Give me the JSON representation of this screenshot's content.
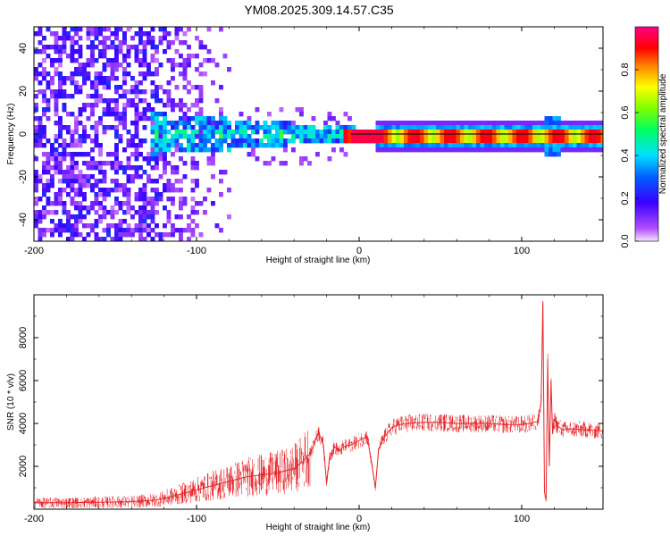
{
  "title": "YM08.2025.309.14.57.C35",
  "colors": {
    "snr_line": "#e8262a",
    "axis": "#000000",
    "background": "#ffffff",
    "colorbar_stops": [
      "#f5e6ff",
      "#8b00ff",
      "#0000ff",
      "#00ffff",
      "#00ff00",
      "#ffff00",
      "#ff8000",
      "#ff0000",
      "#ff0088"
    ]
  },
  "chart_data": [
    {
      "type": "heatmap",
      "name": "spectrogram",
      "title": "YM08.2025.309.14.57.C35",
      "xlabel": "Height of straight line (km)",
      "ylabel": "Frequency (Hz)",
      "xlim": [
        -200,
        150
      ],
      "ylim": [
        -50,
        50
      ],
      "xticks": [
        -200,
        -100,
        0,
        100
      ],
      "yticks": [
        -40,
        -20,
        0,
        20,
        40
      ],
      "xtick_labels": [
        "-200",
        "-100",
        "0",
        "100"
      ],
      "ytick_labels": [
        "-40",
        "-20",
        "0",
        "20",
        "40"
      ],
      "colorbar": {
        "label": "Normalized spectral amplitude",
        "range": [
          0.0,
          1.0
        ],
        "ticks": [
          0.0,
          0.2,
          0.4,
          0.6,
          0.8
        ],
        "tick_labels": [
          "0.0",
          "0.2",
          "0.4",
          "0.6",
          "0.8"
        ]
      },
      "description_regions": [
        {
          "x_range": [
            -200,
            -80
          ],
          "freq_range": [
            -50,
            50
          ],
          "amplitude": 0.05
        },
        {
          "x_range": [
            -130,
            -10
          ],
          "freq_range": [
            -10,
            12
          ],
          "amplitude": 0.3
        },
        {
          "x_range": [
            -10,
            150
          ],
          "freq_range": [
            -2,
            2
          ],
          "amplitude": 0.85
        }
      ]
    },
    {
      "type": "line",
      "name": "snr",
      "xlabel": "Height of straight line (km)",
      "ylabel": "SNR (10 * v/v)",
      "xlim": [
        -200,
        150
      ],
      "ylim": [
        0,
        10000
      ],
      "xticks": [
        -200,
        -100,
        0,
        100
      ],
      "yticks": [
        2000,
        4000,
        6000,
        8000
      ],
      "xtick_labels": [
        "-200",
        "-100",
        "0",
        "100"
      ],
      "ytick_labels": [
        "2000",
        "4000",
        "6000",
        "8000"
      ],
      "series": [
        {
          "name": "SNR",
          "x": [
            -200,
            -180,
            -160,
            -140,
            -125,
            -115,
            -100,
            -90,
            -80,
            -70,
            -60,
            -50,
            -40,
            -35,
            -30,
            -25,
            -22,
            -20,
            -18,
            -15,
            -12,
            -10,
            -5,
            0,
            5,
            8,
            10,
            12,
            15,
            20,
            25,
            30,
            40,
            50,
            60,
            70,
            80,
            90,
            100,
            105,
            110,
            112,
            113,
            114,
            115,
            116,
            117,
            118,
            119,
            120,
            122,
            125,
            130,
            140,
            150
          ],
          "y": [
            300,
            300,
            320,
            350,
            420,
            600,
            900,
            1100,
            1300,
            1500,
            1600,
            1700,
            1900,
            2200,
            2600,
            3600,
            3000,
            1200,
            2500,
            2900,
            2700,
            2900,
            3000,
            3200,
            3400,
            2000,
            1000,
            2800,
            3300,
            3800,
            3950,
            4000,
            4050,
            4050,
            4000,
            4000,
            4000,
            3950,
            3950,
            4000,
            4100,
            5000,
            9700,
            800,
            400,
            7000,
            2000,
            6000,
            3500,
            4200,
            3900,
            3700,
            3750,
            3700,
            3650
          ]
        }
      ]
    }
  ]
}
